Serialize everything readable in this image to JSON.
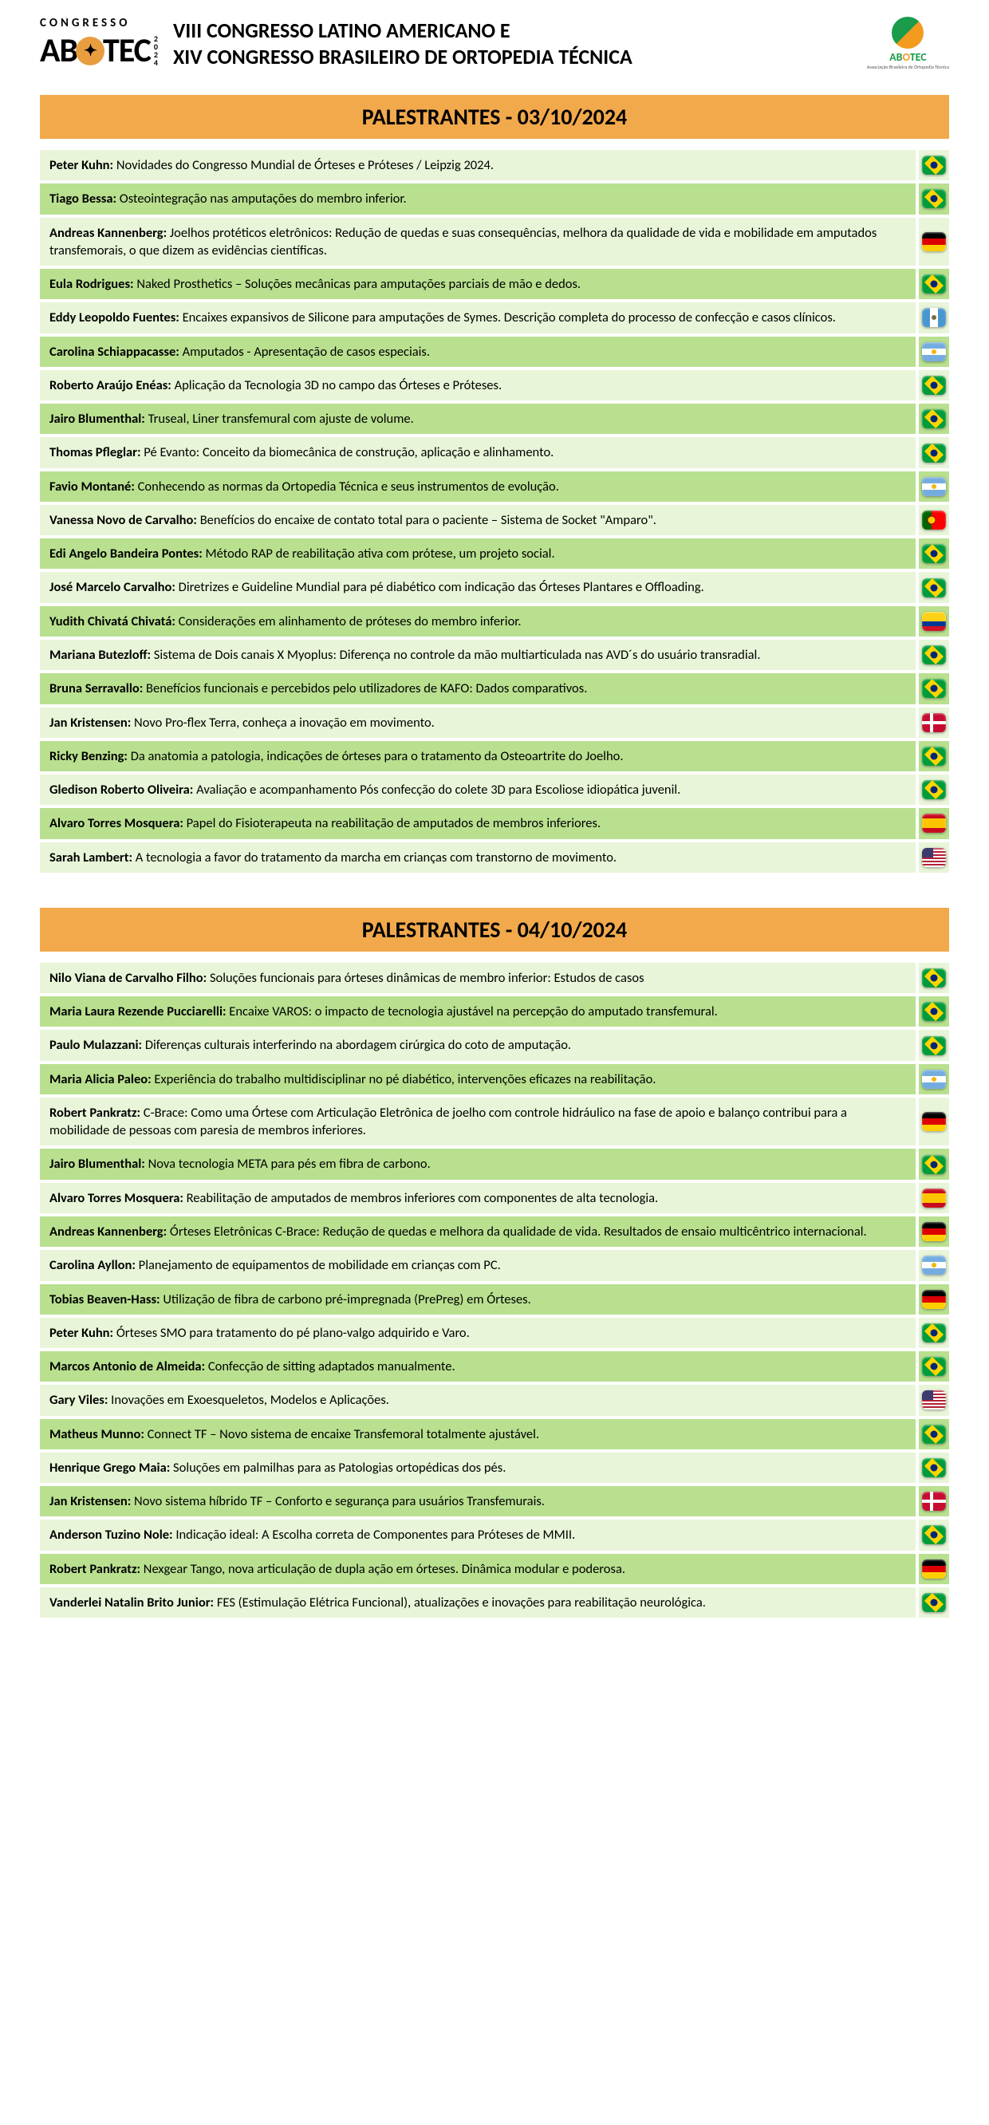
{
  "header": {
    "congresso": "CONGRESSO",
    "brand": "ABOTEC",
    "year": "2024",
    "title_line1": "VIII CONGRESSO LATINO AMERICANO E",
    "title_line2": "XIV CONGRESSO BRASILEIRO DE ORTOPEDIA TÉCNICA",
    "right_brand": "ABOTEC",
    "right_sub": "Associação Brasileira de Ortopedia Técnica"
  },
  "colors": {
    "section_bg": "#f2a94c",
    "row_light": "#e8f5d8",
    "row_dark": "#b9e08f"
  },
  "sections": [
    {
      "title": "PALESTRANTES - 03/10/2024",
      "rows": [
        {
          "shade": "light",
          "speaker": "Peter Kuhn:",
          "talk": " Novidades do Congresso Mundial de Órteses e Próteses / Leipzig 2024.",
          "flag": "br"
        },
        {
          "shade": "dark",
          "speaker": "Tiago Bessa:",
          "talk": " Osteointegração nas amputações do membro inferior.",
          "flag": "br"
        },
        {
          "shade": "light",
          "speaker": "Andreas Kannenberg:",
          "talk": " Joelhos protéticos eletrônicos: Redução de quedas e suas consequências, melhora da qualidade de vida e mobilidade em  amputados transfemorais, o que dizem as evidências científicas.",
          "flag": "de"
        },
        {
          "shade": "dark",
          "speaker": "Eula Rodrigues:",
          "talk": " Naked Prosthetics – Soluções mecânicas para amputações parciais de mão e dedos.",
          "flag": "br"
        },
        {
          "shade": "light",
          "speaker": "Eddy Leopoldo Fuentes:",
          "talk": " Encaixes expansivos de Silicone para amputações de Symes. Descrição completa do processo de confecção e casos clínicos.",
          "flag": "gt"
        },
        {
          "shade": "dark",
          "speaker": "Carolina Schiappacasse:",
          "talk": "  Amputados - Apresentação de casos especiais.",
          "flag": "ar"
        },
        {
          "shade": "light",
          "speaker": "Roberto Araújo Enéas:",
          "talk": " Aplicação da Tecnologia 3D no campo das Órteses e Próteses.",
          "flag": "br"
        },
        {
          "shade": "dark",
          "speaker": "Jairo Blumenthal:",
          "talk": " Truseal, Liner transfemural com ajuste de volume.",
          "flag": "br"
        },
        {
          "shade": "light",
          "speaker": "Thomas Pfleglar:",
          "talk": " Pé Evanto: Conceito da biomecânica de construção, aplicação e alinhamento.",
          "flag": "br"
        },
        {
          "shade": "dark",
          "speaker": "Favio Montané:",
          "talk": " Conhecendo as normas da Ortopedia Técnica e seus instrumentos de evolução.",
          "flag": "ar"
        },
        {
          "shade": "light",
          "speaker": "Vanessa Novo de Carvalho:",
          "talk": " Benefícios do encaixe de contato total para o paciente – Sistema de Socket \"Amparo\".",
          "flag": "pt"
        },
        {
          "shade": "dark",
          "speaker": "Edi Angelo Bandeira Pontes:",
          "talk": " Método RAP de reabilitação ativa com prótese, um projeto social.",
          "flag": "br"
        },
        {
          "shade": "light",
          "speaker": "José Marcelo Carvalho:",
          "talk": " Diretrizes e Guideline Mundial para pé diabético com indicação das Órteses Plantares e Offloading.",
          "flag": "br"
        },
        {
          "shade": "dark",
          "speaker": "Yudith Chivatá Chivatá:",
          "talk": " Considerações em alinhamento de próteses do membro inferior.",
          "flag": "co"
        },
        {
          "shade": "light",
          "speaker": "Mariana Butezloff:",
          "talk": " Sistema de Dois canais X Myoplus: Diferença no controle da mão multiarticulada nas AVD´s do usuário transradial.",
          "flag": "br"
        },
        {
          "shade": "dark",
          "speaker": "Bruna Serravallo:",
          "talk": " Benefícios funcionais e percebidos pelo utilizadores de KAFO: Dados comparativos.",
          "flag": "br"
        },
        {
          "shade": "light",
          "speaker": "Jan Kristensen:",
          "talk": " Novo Pro-flex Terra, conheça a inovação em movimento.",
          "flag": "dk"
        },
        {
          "shade": "dark",
          "speaker": "Ricky Benzing:",
          "talk": " Da anatomia a patologia, indicações de órteses para o tratamento da Osteoartrite do Joelho.",
          "flag": "br"
        },
        {
          "shade": "light",
          "speaker": "Gledison Roberto Oliveira:",
          "talk": " Avaliação e acompanhamento Pós confecção do colete 3D para Escoliose idiopática juvenil.",
          "flag": "br"
        },
        {
          "shade": "dark",
          "speaker": "Alvaro Torres Mosquera:",
          "talk": "  Papel do Fisioterapeuta na reabilitação de amputados de membros inferiores.",
          "flag": "es"
        },
        {
          "shade": "light",
          "speaker": "Sarah Lambert:",
          "talk": " A tecnologia a favor do tratamento da marcha em crianças com transtorno de movimento.",
          "flag": "us"
        }
      ]
    },
    {
      "title": "PALESTRANTES - 04/10/2024",
      "rows": [
        {
          "shade": "light",
          "speaker": "Nilo Viana de Carvalho Filho:",
          "talk": " Soluções funcionais para órteses dinâmicas de membro inferior: Estudos de casos",
          "flag": "br"
        },
        {
          "shade": "dark",
          "speaker": "Maria Laura Rezende Pucciarelli:",
          "talk": " Encaixe VAROS: o impacto de tecnologia ajustável na percepção do amputado transfemural.",
          "flag": "br"
        },
        {
          "shade": "light",
          "speaker": "Paulo Mulazzani:",
          "talk": " Diferenças culturais interferindo na abordagem cirúrgica do coto de amputação.",
          "flag": "br"
        },
        {
          "shade": "dark",
          "speaker": "Maria Alicia Paleo:",
          "talk": " Experiência do trabalho multidisciplinar no pé diabético, intervenções eficazes na reabilitação.",
          "flag": "ar"
        },
        {
          "shade": "light",
          "speaker": "Robert Pankratz:",
          "talk": " C-Brace: Como uma Órtese com Articulação Eletrônica de joelho com controle hidráulico na fase de apoio e balanço contribui para a  mobilidade de pessoas com paresia de membros inferiores.",
          "flag": "de"
        },
        {
          "shade": "dark",
          "speaker": "Jairo Blumenthal:",
          "talk": " Nova tecnologia META para pés em fibra de carbono.",
          "flag": "br"
        },
        {
          "shade": "light",
          "speaker": "Alvaro Torres Mosquera:",
          "talk": " Reabilitação de amputados de membros inferiores com componentes de alta tecnologia.",
          "flag": "es"
        },
        {
          "shade": "dark",
          "speaker": "Andreas Kannenberg:",
          "talk": " Órteses Eletrônicas C-Brace: Redução de quedas e melhora da qualidade de vida. Resultados de ensaio multicêntrico internacional.",
          "flag": "de"
        },
        {
          "shade": "light",
          "speaker": "Carolina Ayllon:",
          "talk": " Planejamento de equipamentos de mobilidade em crianças com PC.",
          "flag": "ar"
        },
        {
          "shade": "dark",
          "speaker": "Tobias Beaven-Hass:",
          "talk": " Utilização de fibra de carbono pré-impregnada (PrePreg) em Órteses.",
          "flag": "de"
        },
        {
          "shade": "light",
          "speaker": "Peter Kuhn:",
          "talk": " Órteses SMO para tratamento do pé plano-valgo adquirido e Varo.",
          "flag": "br"
        },
        {
          "shade": "dark",
          "speaker": "Marcos Antonio de Almeida:",
          "talk": " Confecção de sitting adaptados manualmente.",
          "flag": "br"
        },
        {
          "shade": "light",
          "speaker": "Gary Viles:",
          "talk": "   Inovações em Exoesqueletos, Modelos e Aplicações.",
          "flag": "us"
        },
        {
          "shade": "dark",
          "speaker": "Matheus Munno:",
          "talk": " Connect TF – Novo sistema de encaixe Transfemoral totalmente ajustável.",
          "flag": "br"
        },
        {
          "shade": "light",
          "speaker": "Henrique Grego Maia:",
          "talk": " Soluções em palmilhas para as Patologias ortopédicas dos pés.",
          "flag": "br"
        },
        {
          "shade": "dark",
          "speaker": "Jan Kristensen:",
          "talk": " Novo sistema híbrido TF – Conforto e segurança para usuários Transfemurais.",
          "flag": "dk"
        },
        {
          "shade": "light",
          "speaker": "Anderson Tuzino Nole:",
          "talk": " Indicação ideal: A Escolha correta de Componentes para Próteses de MMII.",
          "flag": "br"
        },
        {
          "shade": "dark",
          "speaker": "Robert Pankratz:",
          "talk": " Nexgear Tango,  nova articulação de dupla ação em órteses. Dinâmica modular e poderosa.",
          "flag": "de"
        },
        {
          "shade": "light",
          "speaker": "Vanderlei Natalin Brito Junior:",
          "talk": " FES (Estimulação Elétrica Funcional), atualizações e inovações para reabilitação neurológica.",
          "flag": "br"
        }
      ]
    }
  ]
}
